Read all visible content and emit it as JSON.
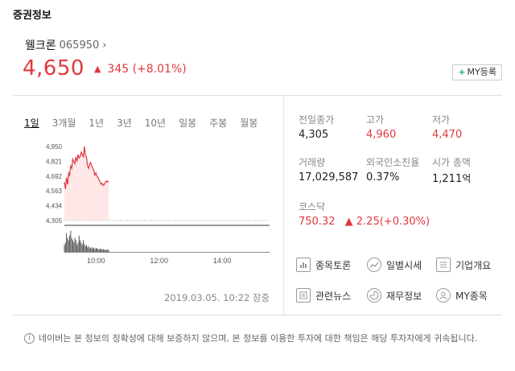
{
  "section": {
    "title": "증권정보"
  },
  "stock": {
    "name": "웰크론",
    "code": "065950",
    "chevron": "›",
    "price": "4,650",
    "direction_icon": "▲",
    "change": "345 (+8.01%)",
    "my_button_plus": "+",
    "my_button_label": "MY등록",
    "up_color": "#e0383e"
  },
  "tabs": [
    {
      "label": "1일",
      "active": true
    },
    {
      "label": "3개월",
      "active": false
    },
    {
      "label": "1년",
      "active": false
    },
    {
      "label": "3년",
      "active": false
    },
    {
      "label": "10년",
      "active": false
    },
    {
      "label": "일봉",
      "active": false
    },
    {
      "label": "주봉",
      "active": false
    },
    {
      "label": "월봉",
      "active": false
    }
  ],
  "chart_data": {
    "type": "line",
    "y_ticks": [
      "4,950",
      "4,821",
      "4,692",
      "4,563",
      "4,434",
      "4,305"
    ],
    "ylim": [
      4305,
      4950
    ],
    "base_price": 4305,
    "x_ticks": [
      "10:00",
      "12:00",
      "14:00"
    ],
    "x_tick_minutes": [
      600,
      720,
      840
    ],
    "xlim": [
      540,
      930
    ],
    "series": [
      {
        "x": [
          540,
          542,
          544,
          546,
          548,
          550,
          552,
          554,
          556,
          558,
          560,
          562,
          564,
          566,
          568,
          570,
          572,
          574,
          576,
          578,
          580,
          582,
          584,
          586,
          588,
          590,
          592,
          594,
          596,
          598,
          600,
          602,
          604,
          606,
          608,
          610,
          612,
          614,
          616,
          618,
          620,
          622,
          624
        ],
        "y": [
          4640,
          4580,
          4680,
          4620,
          4720,
          4700,
          4780,
          4760,
          4840,
          4820,
          4800,
          4860,
          4820,
          4880,
          4850,
          4860,
          4900,
          4880,
          4860,
          4950,
          4870,
          4860,
          4780,
          4760,
          4800,
          4810,
          4780,
          4760,
          4740,
          4700,
          4720,
          4690,
          4680,
          4660,
          4640,
          4620,
          4630,
          4610,
          4620,
          4640,
          4650,
          4640,
          4650
        ],
        "fill": "#fde7e7",
        "line": "#e0383e"
      }
    ],
    "volume_bars": [
      0.3,
      0.4,
      0.8,
      0.6,
      0.5,
      0.7,
      0.9,
      0.6,
      0.5,
      0.4,
      0.6,
      0.5,
      0.3,
      0.4,
      0.7,
      0.5,
      0.4,
      0.3,
      0.5,
      0.35,
      0.25,
      0.3,
      0.2,
      0.25,
      0.15,
      0.2,
      0.15,
      0.2,
      0.15,
      0.12,
      0.18,
      0.15,
      0.12,
      0.1,
      0.15,
      0.12,
      0.1,
      0.12,
      0.1,
      0.08,
      0.1,
      0.08,
      0.1
    ]
  },
  "timestamp": "2019.03.05. 10:22 장중",
  "stats": {
    "prev_close": {
      "label": "전일종가",
      "value": "4,305"
    },
    "high": {
      "label": "고가",
      "value": "4,960"
    },
    "low": {
      "label": "저가",
      "value": "4,470"
    },
    "volume": {
      "label": "거래량",
      "value": "17,029,587"
    },
    "foreign": {
      "label": "외국인소진율",
      "value": "0.37%"
    },
    "market_cap": {
      "label": "시가 총액",
      "value": "1,211",
      "unit": "억"
    },
    "index": {
      "label": "코스닥",
      "value": "750.32",
      "direction_icon": "▲",
      "change": "2.25(+0.30%)"
    }
  },
  "links": [
    {
      "name": "종목토론",
      "icon": "chart-icon"
    },
    {
      "name": "일별시세",
      "icon": "trend-icon"
    },
    {
      "name": "기업개요",
      "icon": "list-icon"
    },
    {
      "name": "관련뉴스",
      "icon": "news-icon"
    },
    {
      "name": "재무정보",
      "icon": "pie-icon"
    },
    {
      "name": "MY종목",
      "icon": "user-icon"
    }
  ],
  "disclaimer": "네이버는 본 정보의 정확성에 대해 보증하지 않으며, 본 정보를 이용한 투자에 대한 책임은 해당 투자자에게 귀속됩니다."
}
